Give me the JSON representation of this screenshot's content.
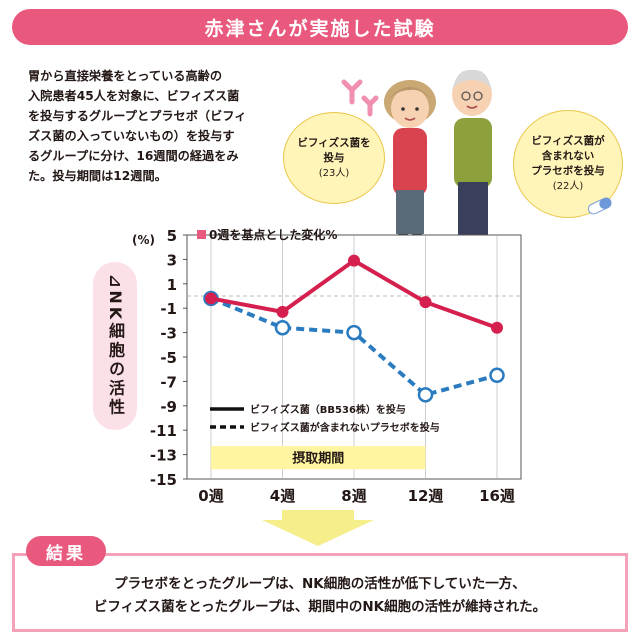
{
  "title": "赤津さんが実施した試験",
  "intro_lines": [
    "胃から直接栄養をとっている高齢の",
    "入院患者45人を対象に、ビフィズス菌",
    "を投与するグループとプラセボ（ビフィ",
    "ズス菌の入っていないもの）を投与す",
    "るグループに分け、16週間の経過をみ",
    "た。投与期間は12週間。"
  ],
  "bubble_left": {
    "line1": "ビフィズス菌を",
    "line2": "投与",
    "count": "(23人)"
  },
  "bubble_right": {
    "line1": "ビフィズス菌が",
    "line2": "含まれない",
    "line3": "プラセボを投与",
    "count": "(22人)"
  },
  "chart_data": {
    "type": "line",
    "legend_title": "0週を基点とした変化%",
    "y_unit": "(%)",
    "ylabel": "NK細胞の活性",
    "categories": [
      "0週",
      "4週",
      "8週",
      "12週",
      "16週"
    ],
    "ylim": [
      -15,
      5
    ],
    "yticks": [
      5,
      3,
      1,
      -1,
      -3,
      -5,
      -7,
      -9,
      -11,
      -13,
      -15
    ],
    "series": [
      {
        "name": "ビフィズス菌（BB536株）を投与",
        "values": [
          -0.2,
          -1.3,
          2.9,
          -0.5,
          -2.6
        ],
        "color": "#d5204f",
        "style": "solid",
        "marker": "filled"
      },
      {
        "name": "ビフィズス菌が含まれないプラセボを投与",
        "values": [
          -0.2,
          -2.6,
          -3.0,
          -8.1,
          -6.5
        ],
        "color": "#2a7bbf",
        "style": "dashed",
        "marker": "open"
      }
    ],
    "intake_period_label": "摂取期間",
    "intake_period_range": [
      "0週",
      "12週"
    ],
    "baseline": 0
  },
  "result": {
    "label": "結果",
    "lines": [
      "プラセボをとったグループは、NK細胞の活性が低下していた一方、",
      "ビフィズス菌をとったグループは、期間中のNK細胞の活性が維持された。"
    ]
  },
  "colors": {
    "accent": "#e9587d",
    "bubble": "#fff5b8",
    "intake_band": "#fff5a0",
    "axis_title_bg": "#fbe0e7"
  }
}
